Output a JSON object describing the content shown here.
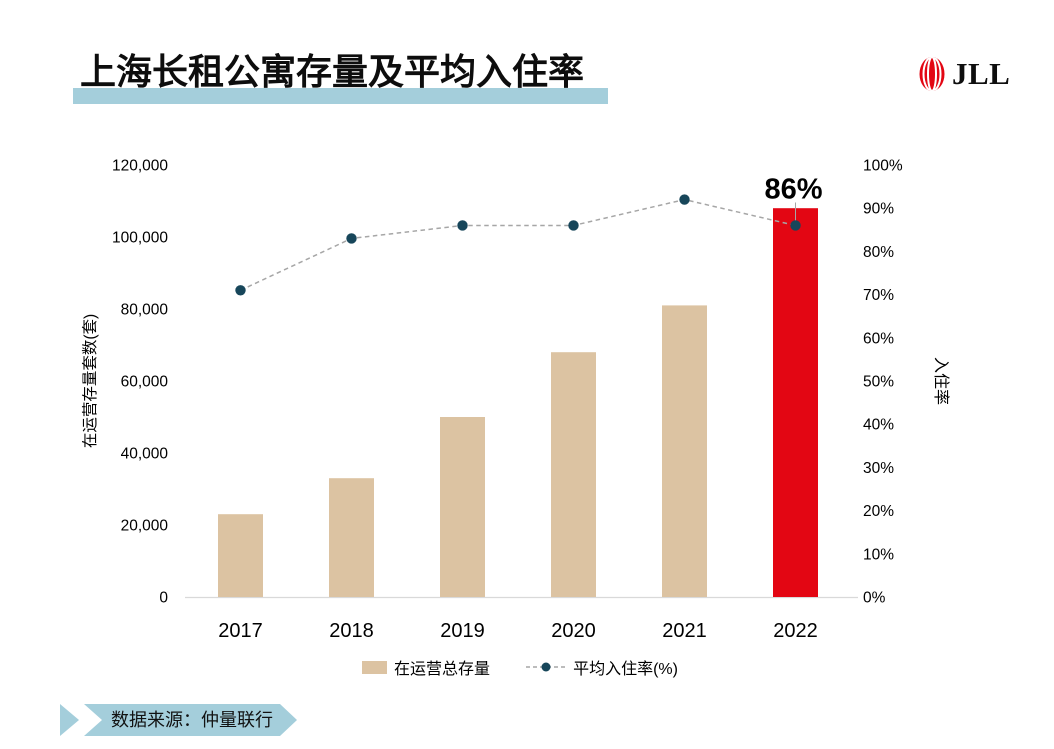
{
  "header": {
    "title": "上海长租公寓存量及平均入住率",
    "logo_text": "JLL"
  },
  "source": {
    "text": "数据来源：仲量联行"
  },
  "colors": {
    "bar": "#dcc3a2",
    "bar_highlight": "#e30613",
    "line_dot": "#17465a",
    "line_dash": "#a6a6a6",
    "accent_blue": "#a4cedb",
    "axis_line": "#d9d9d9",
    "leader_line": "#a6a6a6",
    "logo_red": "#e30613",
    "text": "#000000"
  },
  "chart_data": {
    "type": "bar+line combo",
    "title": "上海长租公寓存量及平均入住率",
    "categories": [
      "2017",
      "2018",
      "2019",
      "2020",
      "2021",
      "2022"
    ],
    "series": [
      {
        "name": "在运营总存量",
        "type": "bar",
        "axis": "left",
        "values": [
          23000,
          33000,
          50000,
          68000,
          81000,
          108000
        ],
        "bar_colors": [
          "#dcc3a2",
          "#dcc3a2",
          "#dcc3a2",
          "#dcc3a2",
          "#dcc3a2",
          "#e30613"
        ]
      },
      {
        "name": "平均入住率(%)",
        "type": "line",
        "axis": "right",
        "style": "dashed-with-dots",
        "values": [
          71,
          83,
          86,
          86,
          92,
          86
        ]
      }
    ],
    "left_axis": {
      "label": "在运营存量套数(套)",
      "min": 0,
      "max": 120000,
      "tick_step": 20000,
      "ticks": [
        "0",
        "20,000",
        "40,000",
        "60,000",
        "80,000",
        "100,000",
        "120,000"
      ]
    },
    "right_axis": {
      "label": "入住率",
      "min": 0,
      "max": 100,
      "tick_step": 10,
      "ticks": [
        "0%",
        "10%",
        "20%",
        "30%",
        "40%",
        "50%",
        "60%",
        "70%",
        "80%",
        "90%",
        "100%"
      ]
    },
    "annotation": {
      "text": "86%",
      "category": "2022",
      "value": 86
    },
    "grid": false,
    "legend_position": "bottom"
  }
}
